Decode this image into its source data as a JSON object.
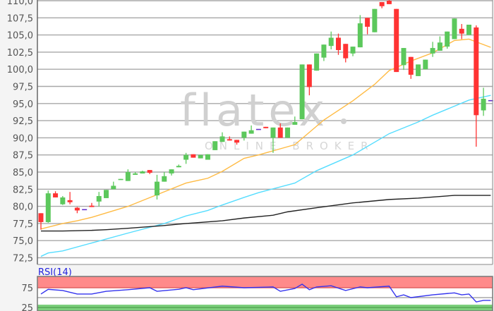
{
  "watermark": {
    "logo_text": "flatex",
    "tagline": "ONLINE BROKER"
  },
  "colors": {
    "up": "#5cc85c",
    "down": "#ff3333",
    "unchanged": "#6633cc",
    "ma_short": "#ffbb44",
    "ma_mid": "#55ddff",
    "ma_long": "#222222",
    "rsi_line": "#3333ee",
    "rsi_overbought_band": "#ff8a8a",
    "rsi_oversold_band": "#7ccf7c",
    "grid": "#a8a8a8"
  },
  "chart_data": [
    {
      "type": "candlestick",
      "grid": true,
      "ylim": [
        72.5,
        110.0
      ],
      "y_ticks": [
        "110,0",
        "107,5",
        "105,0",
        "102,5",
        "100,0",
        "97,5",
        "95,0",
        "92,5",
        "90,0",
        "87,5",
        "85,0",
        "82,5",
        "80,0",
        "77,5",
        "75,0",
        "72,5"
      ],
      "y_tick_values": [
        110,
        107.5,
        105,
        102.5,
        100,
        97.5,
        95,
        92.5,
        90,
        87.5,
        85,
        82.5,
        80,
        77.5,
        75,
        72.5
      ],
      "candles_ohlc": [
        [
          79.0,
          79.0,
          76.6,
          77.7
        ],
        [
          77.7,
          82.3,
          77.6,
          81.9
        ],
        [
          81.9,
          82.2,
          81.3,
          81.3
        ],
        [
          80.3,
          81.5,
          80.2,
          81.3
        ],
        [
          80.9,
          82.1,
          80.3,
          80.6
        ],
        [
          79.8,
          79.9,
          79.0,
          79.4
        ],
        [
          79.6,
          79.6,
          79.6,
          79.6
        ],
        [
          80.1,
          80.5,
          79.9,
          79.9
        ],
        [
          80.7,
          82.1,
          80.0,
          81.5
        ],
        [
          81.2,
          82.4,
          81.2,
          82.4
        ],
        [
          82.5,
          83.6,
          82.5,
          83.0
        ],
        [
          83.9,
          84.0,
          83.9,
          84.0
        ],
        [
          83.7,
          85.4,
          83.7,
          85.0
        ],
        [
          84.6,
          85.0,
          84.6,
          84.8
        ],
        [
          84.8,
          85.2,
          84.8,
          85.1
        ],
        [
          85.3,
          85.3,
          84.7,
          84.9
        ],
        [
          81.6,
          84.6,
          81.0,
          83.6
        ],
        [
          83.6,
          85.0,
          83.6,
          84.4
        ],
        [
          84.8,
          85.4,
          84.5,
          85.4
        ],
        [
          85.7,
          86.1,
          85.7,
          85.9
        ],
        [
          86.8,
          87.8,
          86.2,
          87.5
        ],
        [
          87.6,
          87.6,
          87.1,
          87.1
        ],
        [
          87.0,
          87.5,
          87.0,
          87.5
        ],
        [
          86.8,
          87.6,
          86.8,
          87.6
        ],
        [
          88.2,
          89.5,
          88.2,
          89.5
        ],
        [
          89.4,
          90.8,
          89.4,
          90.2
        ],
        [
          89.8,
          90.2,
          89.6,
          89.6
        ],
        [
          89.7,
          89.7,
          89.0,
          89.3
        ],
        [
          90.0,
          90.9,
          89.6,
          90.9
        ],
        [
          90.6,
          91.8,
          90.6,
          91.1
        ],
        [
          91.3,
          91.3,
          91.3,
          91.3
        ],
        [
          91.6,
          91.6,
          91.4,
          91.4
        ],
        [
          90.0,
          91.5,
          87.8,
          91.5
        ],
        [
          91.5,
          92.1,
          90.0,
          90.0
        ],
        [
          90.0,
          91.5,
          90.0,
          91.5
        ],
        [
          91.9,
          93.1,
          91.9,
          92.3
        ],
        [
          92.7,
          100.7,
          92.7,
          100.7
        ],
        [
          100.7,
          100.7,
          96.2,
          97.4
        ],
        [
          99.8,
          102.3,
          99.8,
          102.3
        ],
        [
          101.7,
          103.6,
          101.2,
          103.6
        ],
        [
          103.4,
          105.5,
          102.9,
          104.6
        ],
        [
          104.6,
          105.2,
          102.1,
          102.8
        ],
        [
          103.7,
          103.7,
          101.0,
          101.6
        ],
        [
          102.3,
          103.3,
          101.9,
          103.3
        ],
        [
          103.2,
          107.9,
          103.2,
          106.7
        ],
        [
          107.5,
          107.5,
          105.1,
          106.2
        ],
        [
          105.4,
          108.8,
          105.4,
          108.8
        ],
        [
          109.8,
          109.8,
          108.9,
          109.2
        ],
        [
          110.0,
          110.5,
          109.5,
          109.5
        ],
        [
          108.8,
          108.8,
          99.6,
          99.6
        ],
        [
          100.6,
          103.1,
          99.9,
          103.1
        ],
        [
          101.8,
          101.8,
          98.6,
          99.2
        ],
        [
          99.0,
          100.7,
          99.0,
          100.7
        ],
        [
          100.0,
          101.4,
          100.0,
          101.4
        ],
        [
          102.3,
          104.0,
          101.8,
          103.1
        ],
        [
          102.7,
          104.8,
          102.7,
          103.9
        ],
        [
          103.3,
          105.5,
          103.0,
          105.5
        ],
        [
          104.4,
          107.4,
          104.4,
          107.4
        ],
        [
          105.9,
          106.6,
          104.4,
          105.2
        ],
        [
          105.0,
          106.5,
          105.0,
          106.5
        ],
        [
          106.1,
          106.4,
          88.7,
          93.3
        ],
        [
          94.0,
          97.3,
          93.2,
          95.7
        ],
        [
          95.5,
          95.5,
          95.5,
          95.5
        ]
      ],
      "moving_averages": [
        {
          "color_key": "ma_short",
          "points": [
            [
              1,
              76.7
            ],
            [
              4,
              77.5
            ],
            [
              6,
              77.9
            ],
            [
              8,
              78.4
            ],
            [
              13,
              80.0
            ],
            [
              21,
              83.4
            ],
            [
              24,
              84.1
            ],
            [
              26,
              85.1
            ],
            [
              29,
              87.0
            ],
            [
              31,
              87.5
            ],
            [
              36,
              89.0
            ],
            [
              40,
              92.6
            ],
            [
              44,
              95.4
            ],
            [
              47,
              97.8
            ],
            [
              49,
              99.8
            ],
            [
              52,
              101.2
            ],
            [
              55,
              102.4
            ],
            [
              58,
              104.2
            ],
            [
              60,
              104.4
            ],
            [
              63,
              103.2
            ]
          ]
        },
        {
          "color_key": "ma_mid",
          "points": [
            [
              1,
              72.7
            ],
            [
              2,
              73.2
            ],
            [
              4,
              73.5
            ],
            [
              13,
              76.1
            ],
            [
              18,
              77.5
            ],
            [
              21,
              78.6
            ],
            [
              24,
              79.4
            ],
            [
              26,
              80.2
            ],
            [
              29,
              81.3
            ],
            [
              31,
              82.0
            ],
            [
              36,
              83.4
            ],
            [
              39,
              85.2
            ],
            [
              44,
              87.5
            ],
            [
              49,
              90.6
            ],
            [
              53,
              92.3
            ],
            [
              55,
              93.3
            ],
            [
              60,
              95.5
            ],
            [
              63,
              96.2
            ]
          ]
        },
        {
          "color_key": "ma_long",
          "points": [
            [
              1,
              76.4
            ],
            [
              4,
              76.4
            ],
            [
              8,
              76.5
            ],
            [
              10,
              76.6
            ],
            [
              13,
              76.8
            ],
            [
              18,
              77.2
            ],
            [
              21,
              77.5
            ],
            [
              26,
              77.9
            ],
            [
              29,
              78.3
            ],
            [
              33,
              78.7
            ],
            [
              35,
              79.2
            ],
            [
              39,
              79.8
            ],
            [
              44,
              80.5
            ],
            [
              49,
              81.0
            ],
            [
              53,
              81.2
            ],
            [
              58,
              81.6
            ],
            [
              63,
              81.6
            ]
          ]
        }
      ]
    },
    {
      "type": "line",
      "title": "RSI(14)",
      "grid": true,
      "y_ticks": [
        "75",
        "25"
      ],
      "y_tick_values": [
        75,
        25
      ],
      "bands": {
        "overbought_above": 75,
        "oversold_below": 25
      },
      "points": [
        [
          1,
          59
        ],
        [
          2,
          71
        ],
        [
          4,
          68
        ],
        [
          6,
          59
        ],
        [
          8,
          59
        ],
        [
          10,
          66
        ],
        [
          13,
          70
        ],
        [
          16,
          75
        ],
        [
          17,
          66
        ],
        [
          20,
          71
        ],
        [
          21,
          75
        ],
        [
          22,
          70
        ],
        [
          26,
          79
        ],
        [
          29,
          75
        ],
        [
          33,
          77
        ],
        [
          34,
          66
        ],
        [
          36,
          73
        ],
        [
          37,
          84
        ],
        [
          38,
          70
        ],
        [
          39,
          77
        ],
        [
          41,
          80
        ],
        [
          43,
          68
        ],
        [
          45,
          77
        ],
        [
          46,
          75
        ],
        [
          49,
          79
        ],
        [
          50,
          52
        ],
        [
          51,
          57
        ],
        [
          52,
          50
        ],
        [
          55,
          57
        ],
        [
          58,
          62
        ],
        [
          59,
          57
        ],
        [
          60,
          59
        ],
        [
          61,
          39
        ],
        [
          62,
          43
        ],
        [
          63,
          43
        ]
      ]
    }
  ]
}
